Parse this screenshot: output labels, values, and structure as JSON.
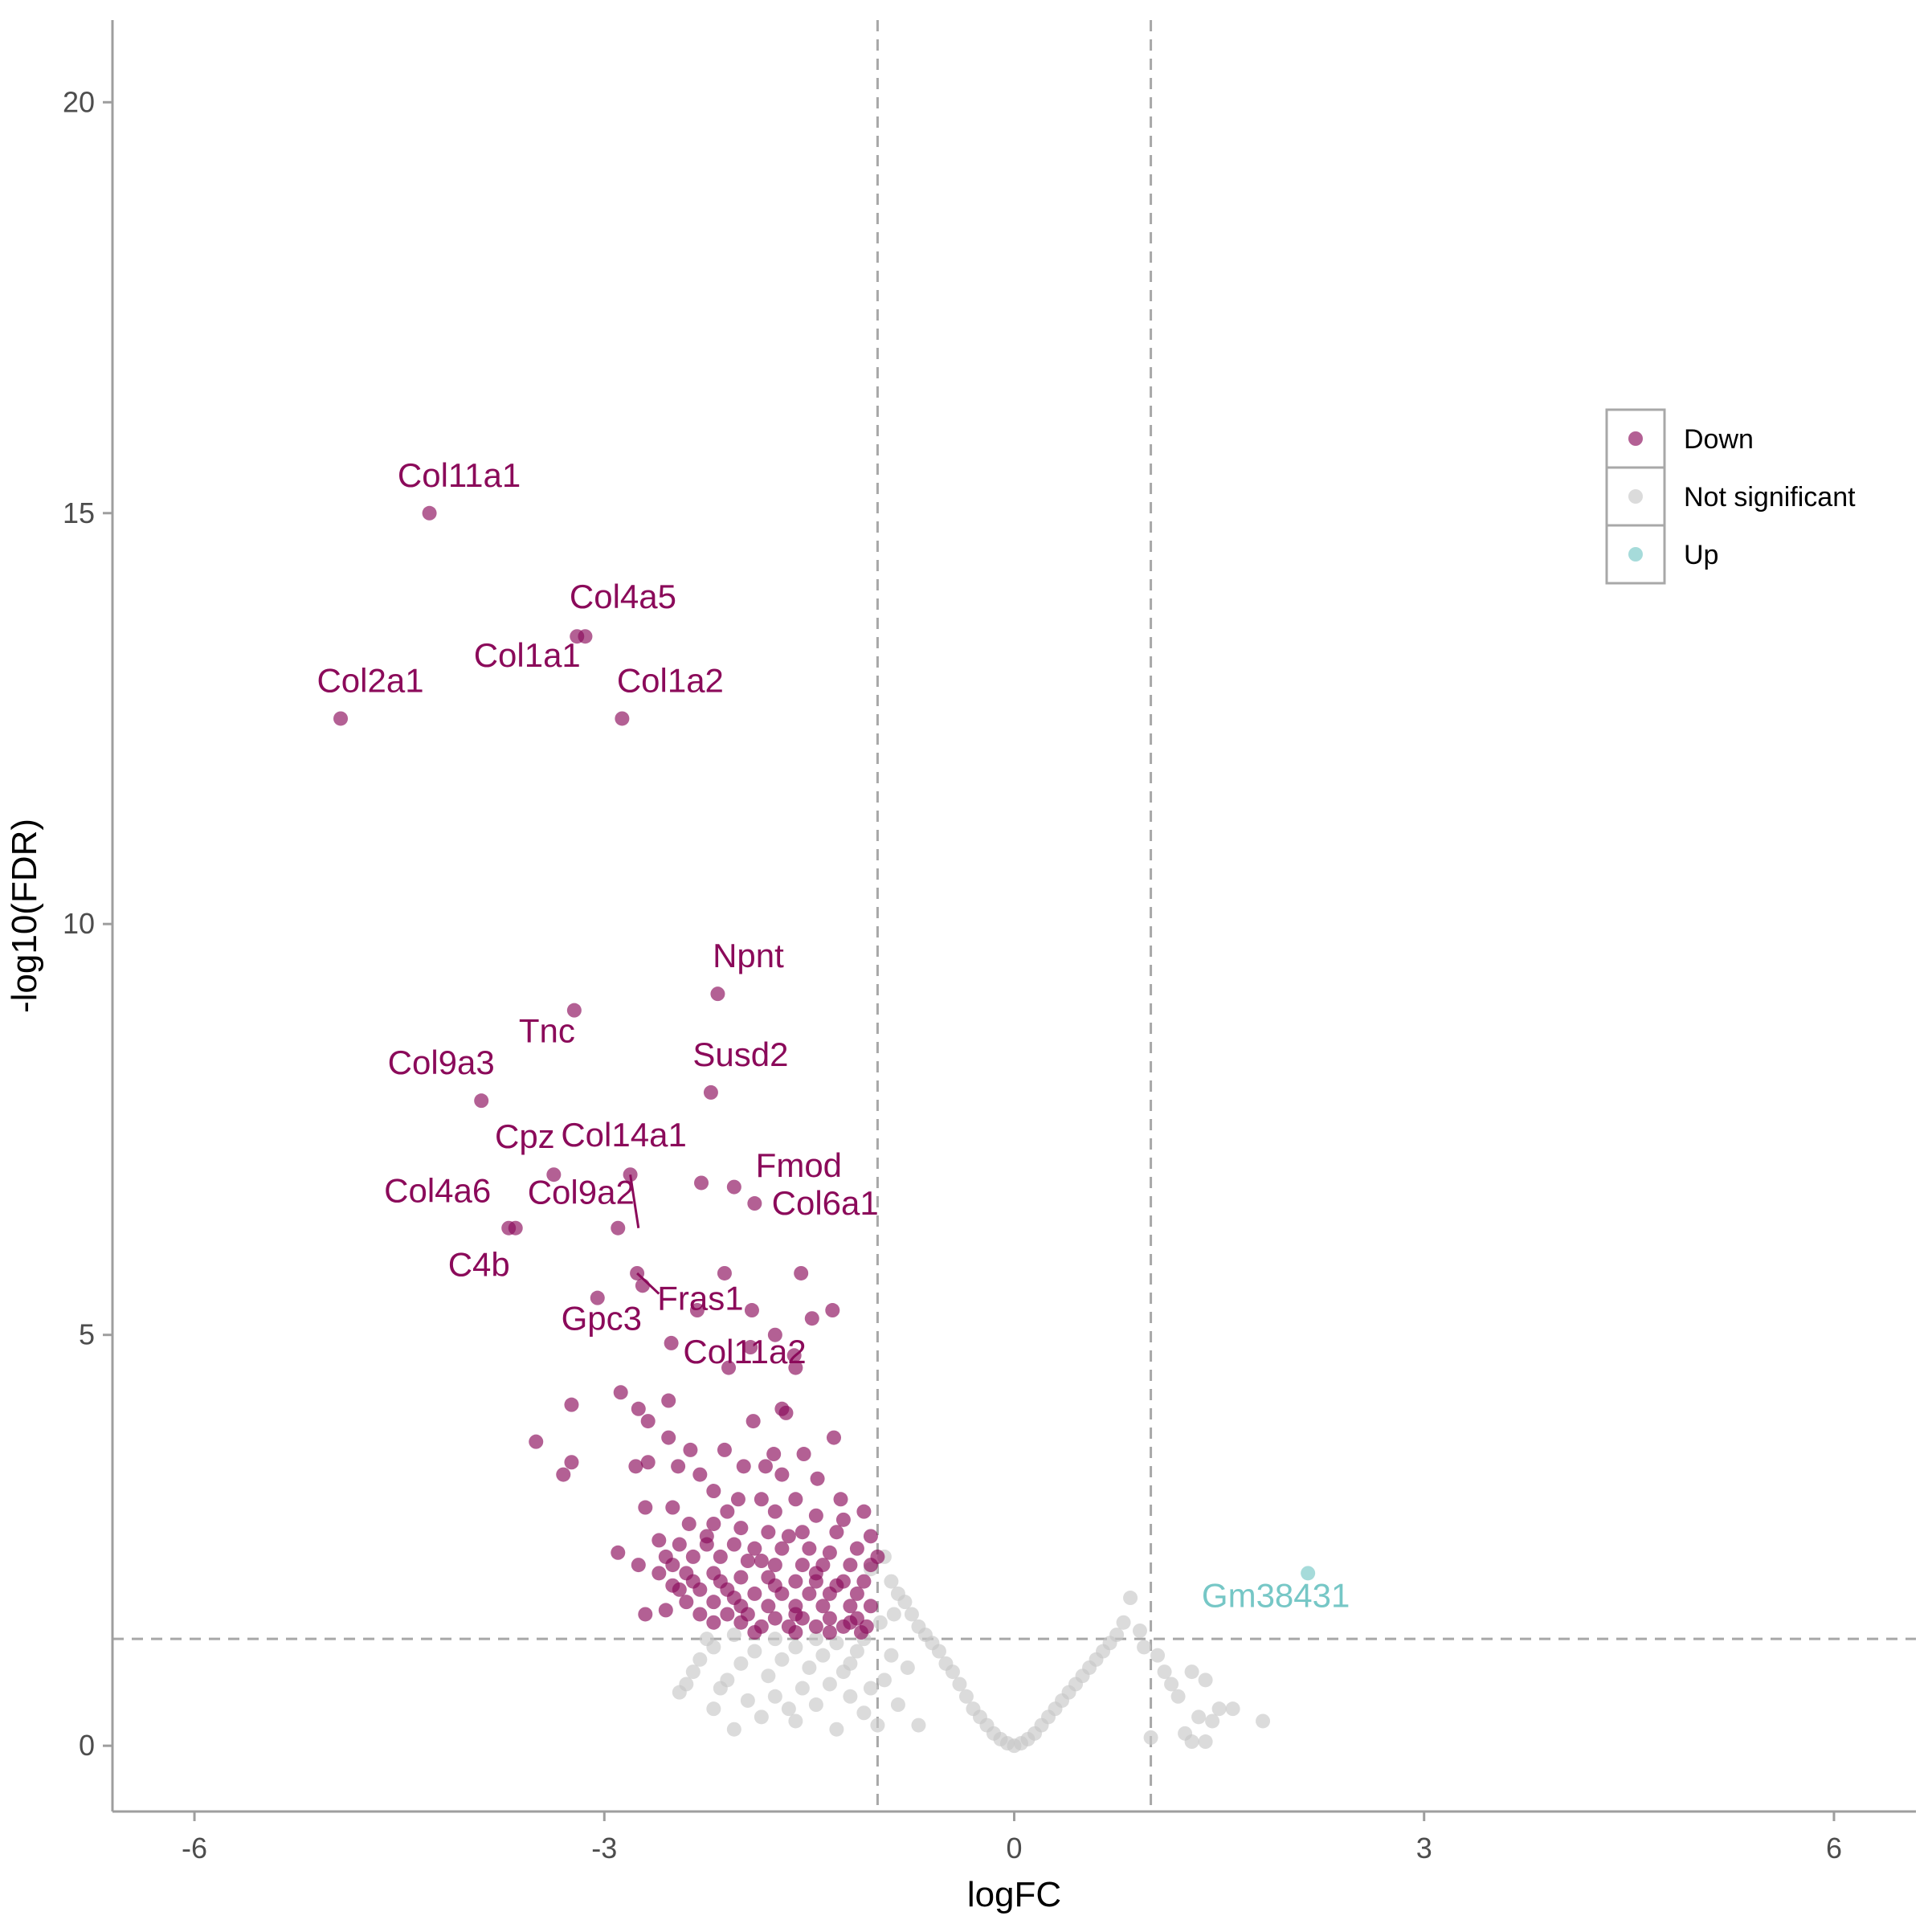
{
  "chart_data": {
    "type": "scatter",
    "title": "",
    "xlabel": "logFC",
    "ylabel": "-log10(FDR)",
    "xlim": [
      -6.6,
      6.6
    ],
    "ylim": [
      -0.8,
      21.0
    ],
    "x_ticks": [
      -6,
      -3,
      0,
      3,
      6
    ],
    "y_ticks": [
      0,
      5,
      10,
      15,
      20
    ],
    "x_tick_labels": [
      "-6",
      "-3",
      "0",
      "3",
      "6"
    ],
    "y_tick_labels": [
      "0",
      "5",
      "10",
      "15",
      "20"
    ],
    "grid": false,
    "thresholds": {
      "logFC": [
        -1,
        1
      ],
      "neg_log10_fdr": 1.3
    },
    "legend": {
      "placement": "right",
      "entries": [
        {
          "label": "Down",
          "color": "#8B0A5A"
        },
        {
          "label": "Not significant",
          "color": "#C8C8C8"
        },
        {
          "label": "Up",
          "color": "#76C7C6"
        }
      ]
    },
    "colors": {
      "Down": "#8B0A5A",
      "Not significant": "#C8C8C8",
      "Up": "#76C7C6",
      "threshold_line": "#A8A8A8",
      "axis": "#9E9E9E"
    },
    "series": [
      {
        "name": "Down",
        "color": "#8B0A5A",
        "points": [
          [
            -4.28,
            15.0
          ],
          [
            -3.2,
            13.5
          ],
          [
            -3.14,
            13.5
          ],
          [
            -4.93,
            12.5
          ],
          [
            -2.87,
            12.5
          ],
          [
            -2.17,
            9.15
          ],
          [
            -3.22,
            8.95
          ],
          [
            -2.22,
            7.95
          ],
          [
            -3.9,
            7.85
          ],
          [
            -3.37,
            6.95
          ],
          [
            -2.81,
            6.95
          ],
          [
            -2.29,
            6.85
          ],
          [
            -2.05,
            6.8
          ],
          [
            -1.9,
            6.6
          ],
          [
            -3.65,
            6.3
          ],
          [
            -3.7,
            6.3
          ],
          [
            -2.9,
            6.3
          ],
          [
            -2.76,
            5.75
          ],
          [
            -2.12,
            5.75
          ],
          [
            -1.56,
            5.75
          ],
          [
            -2.72,
            5.6
          ],
          [
            -3.05,
            5.45
          ],
          [
            -2.32,
            5.3
          ],
          [
            -1.92,
            5.3
          ],
          [
            -1.33,
            5.3
          ],
          [
            -1.48,
            5.2
          ],
          [
            -1.75,
            5.0
          ],
          [
            -2.51,
            4.9
          ],
          [
            -1.93,
            4.85
          ],
          [
            -1.61,
            4.75
          ],
          [
            -2.09,
            4.6
          ],
          [
            -1.6,
            4.6
          ],
          [
            -2.88,
            4.3
          ],
          [
            -3.24,
            4.15
          ],
          [
            -2.53,
            4.2
          ],
          [
            -2.75,
            4.1
          ],
          [
            -1.7,
            4.1
          ],
          [
            -1.67,
            4.05
          ],
          [
            -2.68,
            3.95
          ],
          [
            -1.91,
            3.95
          ],
          [
            -3.5,
            3.7
          ],
          [
            -2.53,
            3.75
          ],
          [
            -1.32,
            3.75
          ],
          [
            -2.37,
            3.6
          ],
          [
            -2.12,
            3.6
          ],
          [
            -1.76,
            3.55
          ],
          [
            -1.54,
            3.55
          ],
          [
            -3.24,
            3.45
          ],
          [
            -2.68,
            3.45
          ],
          [
            -2.77,
            3.4
          ],
          [
            -2.46,
            3.4
          ],
          [
            -1.98,
            3.4
          ],
          [
            -1.82,
            3.4
          ],
          [
            -3.3,
            3.3
          ],
          [
            -2.3,
            3.3
          ],
          [
            -1.7,
            3.3
          ],
          [
            -1.44,
            3.25
          ],
          [
            -2.2,
            3.1
          ],
          [
            -2.02,
            3.0
          ],
          [
            -1.85,
            3.0
          ],
          [
            -1.6,
            3.0
          ],
          [
            -1.27,
            3.0
          ],
          [
            -2.5,
            2.9
          ],
          [
            -2.7,
            2.9
          ],
          [
            -2.1,
            2.85
          ],
          [
            -1.75,
            2.85
          ],
          [
            -1.45,
            2.8
          ],
          [
            -1.1,
            2.85
          ],
          [
            -2.38,
            2.7
          ],
          [
            -2.2,
            2.7
          ],
          [
            -2.0,
            2.65
          ],
          [
            -1.8,
            2.6
          ],
          [
            -1.55,
            2.6
          ],
          [
            -1.3,
            2.6
          ],
          [
            -1.05,
            2.55
          ],
          [
            -2.6,
            2.5
          ],
          [
            -2.45,
            2.45
          ],
          [
            -2.25,
            2.45
          ],
          [
            -2.05,
            2.45
          ],
          [
            -1.9,
            2.4
          ],
          [
            -1.7,
            2.4
          ],
          [
            -1.5,
            2.4
          ],
          [
            -1.35,
            2.35
          ],
          [
            -1.15,
            2.4
          ],
          [
            -2.9,
            2.35
          ],
          [
            -2.55,
            2.3
          ],
          [
            -2.35,
            2.3
          ],
          [
            -2.15,
            2.3
          ],
          [
            -1.95,
            2.25
          ],
          [
            -1.75,
            2.2
          ],
          [
            -1.55,
            2.2
          ],
          [
            -1.4,
            2.2
          ],
          [
            -1.2,
            2.2
          ],
          [
            -1.05,
            2.2
          ],
          [
            -2.75,
            2.2
          ],
          [
            -2.6,
            2.1
          ],
          [
            -2.4,
            2.1
          ],
          [
            -2.2,
            2.1
          ],
          [
            -2.0,
            2.05
          ],
          [
            -1.8,
            2.05
          ],
          [
            -1.6,
            2.0
          ],
          [
            -1.45,
            2.0
          ],
          [
            -1.25,
            2.0
          ],
          [
            -1.1,
            2.0
          ],
          [
            -2.5,
            1.95
          ],
          [
            -2.3,
            1.9
          ],
          [
            -2.1,
            1.9
          ],
          [
            -1.9,
            1.85
          ],
          [
            -1.7,
            1.85
          ],
          [
            -1.5,
            1.85
          ],
          [
            -1.35,
            1.85
          ],
          [
            -1.15,
            1.85
          ],
          [
            -2.4,
            1.75
          ],
          [
            -2.2,
            1.75
          ],
          [
            -2.0,
            1.7
          ],
          [
            -1.8,
            1.7
          ],
          [
            -1.6,
            1.7
          ],
          [
            -1.4,
            1.7
          ],
          [
            -1.2,
            1.7
          ],
          [
            -1.05,
            1.7
          ],
          [
            -2.55,
            1.65
          ],
          [
            -2.3,
            1.6
          ],
          [
            -2.1,
            1.6
          ],
          [
            -1.95,
            1.6
          ],
          [
            -1.75,
            1.55
          ],
          [
            -1.55,
            1.55
          ],
          [
            -1.35,
            1.55
          ],
          [
            -1.15,
            1.55
          ],
          [
            -2.7,
            1.6
          ],
          [
            -2.2,
            1.5
          ],
          [
            -2.0,
            1.5
          ],
          [
            -1.85,
            1.45
          ],
          [
            -1.65,
            1.45
          ],
          [
            -1.45,
            1.45
          ],
          [
            -1.25,
            1.45
          ],
          [
            -1.08,
            1.45
          ],
          [
            -1.9,
            1.38
          ],
          [
            -1.6,
            1.38
          ],
          [
            -1.35,
            1.38
          ],
          [
            -1.12,
            1.38
          ],
          [
            -2.45,
            1.9
          ],
          [
            -2.25,
            2.55
          ],
          [
            -1.65,
            2.55
          ],
          [
            -1.25,
            2.75
          ],
          [
            -2.35,
            2.0
          ],
          [
            -1.85,
            2.25
          ],
          [
            -1.45,
            2.1
          ],
          [
            -1.3,
            1.95
          ],
          [
            -2.05,
            1.8
          ],
          [
            -1.6,
            1.6
          ],
          [
            -1.2,
            1.5
          ],
          [
            -2.5,
            2.2
          ],
          [
            -2.15,
            2.0
          ],
          [
            -1.75,
            1.95
          ],
          [
            -1.0,
            2.3
          ]
        ]
      },
      {
        "name": "Not significant",
        "color": "#C8C8C8",
        "points": [
          [
            -1.05,
            2.15
          ],
          [
            -0.95,
            2.3
          ],
          [
            -0.9,
            2.0
          ],
          [
            -0.85,
            1.85
          ],
          [
            -0.8,
            1.75
          ],
          [
            -0.75,
            1.6
          ],
          [
            -0.7,
            1.45
          ],
          [
            -0.65,
            1.35
          ],
          [
            -0.6,
            1.25
          ],
          [
            -0.55,
            1.15
          ],
          [
            -0.5,
            1.0
          ],
          [
            -0.45,
            0.9
          ],
          [
            -0.4,
            0.75
          ],
          [
            -0.35,
            0.6
          ],
          [
            -0.3,
            0.45
          ],
          [
            -0.25,
            0.35
          ],
          [
            -0.2,
            0.25
          ],
          [
            -0.15,
            0.15
          ],
          [
            -0.1,
            0.08
          ],
          [
            -0.05,
            0.03
          ],
          [
            0.0,
            0.0
          ],
          [
            0.05,
            0.03
          ],
          [
            0.1,
            0.08
          ],
          [
            0.15,
            0.15
          ],
          [
            0.2,
            0.25
          ],
          [
            0.25,
            0.35
          ],
          [
            0.3,
            0.45
          ],
          [
            0.35,
            0.55
          ],
          [
            0.4,
            0.65
          ],
          [
            0.45,
            0.75
          ],
          [
            0.5,
            0.85
          ],
          [
            0.55,
            0.95
          ],
          [
            0.6,
            1.05
          ],
          [
            0.65,
            1.15
          ],
          [
            0.7,
            1.25
          ],
          [
            0.75,
            1.35
          ],
          [
            0.8,
            1.5
          ],
          [
            0.85,
            1.8
          ],
          [
            0.92,
            1.4
          ],
          [
            0.95,
            1.2
          ],
          [
            1.05,
            1.1
          ],
          [
            1.1,
            0.9
          ],
          [
            1.15,
            0.75
          ],
          [
            1.2,
            0.6
          ],
          [
            1.3,
            0.9
          ],
          [
            1.4,
            0.8
          ],
          [
            1.35,
            0.35
          ],
          [
            1.45,
            0.3
          ],
          [
            1.5,
            0.45
          ],
          [
            1.6,
            0.45
          ],
          [
            1.82,
            0.3
          ],
          [
            1.25,
            0.15
          ],
          [
            1.3,
            0.05
          ],
          [
            1.4,
            0.05
          ],
          [
            1.0,
            0.1
          ],
          [
            -1.1,
            1.3
          ],
          [
            -1.15,
            1.15
          ],
          [
            -1.2,
            1.0
          ],
          [
            -1.3,
            1.25
          ],
          [
            -1.4,
            1.1
          ],
          [
            -1.5,
            0.95
          ],
          [
            -1.6,
            1.2
          ],
          [
            -1.7,
            1.05
          ],
          [
            -1.8,
            0.85
          ],
          [
            -1.9,
            1.15
          ],
          [
            -2.0,
            1.0
          ],
          [
            -2.1,
            0.8
          ],
          [
            -2.2,
            1.2
          ],
          [
            -2.3,
            1.05
          ],
          [
            -2.4,
            0.75
          ],
          [
            -2.2,
            0.45
          ],
          [
            -2.05,
            0.2
          ],
          [
            -1.95,
            0.55
          ],
          [
            -1.75,
            0.6
          ],
          [
            -1.6,
            0.3
          ],
          [
            -1.45,
            0.5
          ],
          [
            -1.3,
            0.2
          ],
          [
            -1.2,
            0.6
          ],
          [
            -1.1,
            0.4
          ],
          [
            -1.0,
            0.25
          ],
          [
            -0.95,
            0.8
          ],
          [
            -0.9,
            1.1
          ],
          [
            -1.05,
            0.7
          ],
          [
            -0.85,
            0.5
          ],
          [
            -0.7,
            0.25
          ],
          [
            -1.35,
            0.75
          ],
          [
            -1.55,
            0.7
          ],
          [
            -1.65,
            0.45
          ],
          [
            -1.85,
            0.35
          ],
          [
            -2.15,
            0.7
          ],
          [
            -2.35,
            0.9
          ],
          [
            -2.45,
            0.65
          ],
          [
            -1.25,
            0.9
          ],
          [
            -0.98,
            1.5
          ],
          [
            -0.88,
            1.6
          ],
          [
            -1.75,
            1.3
          ],
          [
            -2.05,
            1.35
          ],
          [
            -2.25,
            1.3
          ],
          [
            -1.45,
            1.3
          ],
          [
            -0.78,
            0.95
          ]
        ]
      },
      {
        "name": "Up",
        "color": "#76C7C6",
        "points": [
          [
            2.15,
            2.1
          ]
        ]
      }
    ],
    "labels": [
      {
        "text": "Col11a1",
        "x": -4.28,
        "y": 15.0,
        "series": "Down"
      },
      {
        "text": "Col4a5",
        "x": -3.14,
        "y": 13.5,
        "series": "Down"
      },
      {
        "text": "Col1a1",
        "x": -3.2,
        "y": 13.5,
        "series": "Down"
      },
      {
        "text": "Col2a1",
        "x": -4.93,
        "y": 12.5,
        "series": "Down"
      },
      {
        "text": "Col1a2",
        "x": -2.87,
        "y": 12.5,
        "series": "Down"
      },
      {
        "text": "Npnt",
        "x": -2.17,
        "y": 9.15,
        "series": "Down"
      },
      {
        "text": "Tnc",
        "x": -3.22,
        "y": 8.95,
        "series": "Down"
      },
      {
        "text": "Susd2",
        "x": -2.22,
        "y": 7.95,
        "series": "Down"
      },
      {
        "text": "Col9a3",
        "x": -3.9,
        "y": 7.85,
        "series": "Down"
      },
      {
        "text": "Cpz",
        "x": -3.37,
        "y": 6.95,
        "series": "Down"
      },
      {
        "text": "Col14a1",
        "x": -2.81,
        "y": 6.95,
        "series": "Down"
      },
      {
        "text": "Fmod",
        "x": -1.9,
        "y": 6.6,
        "series": "Down"
      },
      {
        "text": "Col4a6",
        "x": -3.65,
        "y": 6.3,
        "series": "Down"
      },
      {
        "text": "Col9a2",
        "x": -2.9,
        "y": 6.3,
        "series": "Down"
      },
      {
        "text": "Col6a1",
        "x": -1.56,
        "y": 5.75,
        "series": "Down"
      },
      {
        "text": "Fras1",
        "x": -2.72,
        "y": 5.6,
        "series": "Down"
      },
      {
        "text": "C4b",
        "x": -3.7,
        "y": 6.3,
        "series": "Down"
      },
      {
        "text": "Col11a2",
        "x": -2.76,
        "y": 5.75,
        "series": "Down"
      },
      {
        "text": "Gpc3",
        "x": -3.05,
        "y": 5.45,
        "series": "Down"
      },
      {
        "text": "Gm38431",
        "x": 2.15,
        "y": 2.1,
        "series": "Up"
      }
    ]
  }
}
